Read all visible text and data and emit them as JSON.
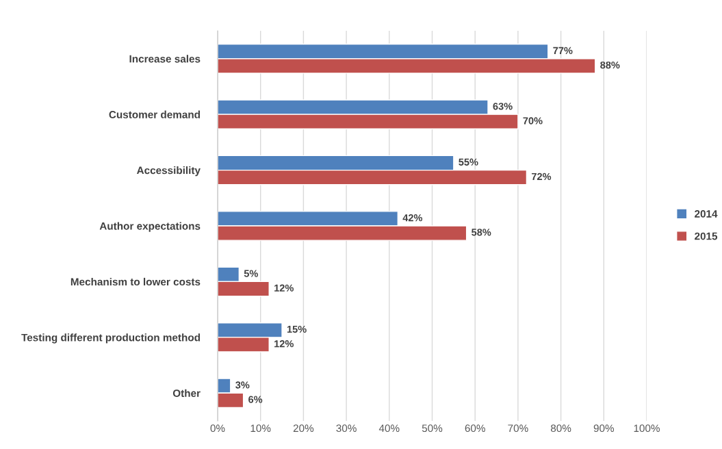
{
  "chart_data": {
    "type": "bar",
    "orientation": "horizontal",
    "categories": [
      "Increase sales",
      "Customer demand",
      "Accessibility",
      "Author expectations",
      "Mechanism to lower costs",
      "Testing different production method",
      "Other"
    ],
    "series": [
      {
        "name": "2014",
        "color": "#4f81bd",
        "values": [
          77,
          63,
          55,
          42,
          5,
          15,
          3
        ],
        "value_labels": [
          "77%",
          "63%",
          "55%",
          "42%",
          "5%",
          "15%",
          "3%"
        ]
      },
      {
        "name": "2015",
        "color": "#c0504d",
        "values": [
          88,
          70,
          72,
          58,
          12,
          12,
          6
        ],
        "value_labels": [
          "88%",
          "70%",
          "72%",
          "58%",
          "12%",
          "12%",
          "6%"
        ]
      }
    ],
    "xlim": [
      0,
      100
    ],
    "xticks": [
      {
        "value": 0,
        "label": "0%"
      },
      {
        "value": 10,
        "label": "10%"
      },
      {
        "value": 20,
        "label": "20%"
      },
      {
        "value": 30,
        "label": "30%"
      },
      {
        "value": 40,
        "label": "40%"
      },
      {
        "value": 50,
        "label": "50%"
      },
      {
        "value": 60,
        "label": "60%"
      },
      {
        "value": 70,
        "label": "70%"
      },
      {
        "value": 80,
        "label": "80%"
      },
      {
        "value": 90,
        "label": "90%"
      },
      {
        "value": 100,
        "label": "100%"
      }
    ],
    "grid": "x",
    "legend": "right"
  }
}
